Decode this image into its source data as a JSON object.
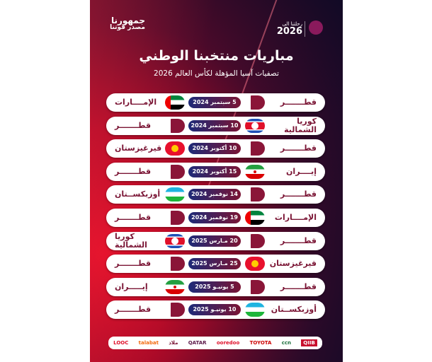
{
  "header": {
    "brand_line1": "جمهورنا",
    "brand_line2": "مصدر قوتنا",
    "journey_line1": "رحلتنا الى",
    "journey_line2": "2026",
    "logo": "QFA"
  },
  "title": "مباريات منتخبنا الوطني",
  "subtitle": "تصفيات آسيا المؤهلة لكأس العالم 2026",
  "matches": [
    {
      "home": "قطـــــــر",
      "home_flag": "qatar",
      "date": "5 سبتمبر 2024",
      "away": "الإمــــارات",
      "away_flag": "uae"
    },
    {
      "home": "كوريا الشمالية",
      "home_flag": "north-korea",
      "date": "10 سبتمبر 2024",
      "away": "قطـــــــر",
      "away_flag": "qatar"
    },
    {
      "home": "قطـــــــر",
      "home_flag": "qatar",
      "date": "10 أكتوبر 2024",
      "away": "قيرغيزستان",
      "away_flag": "kyrgyzstan"
    },
    {
      "home": "إيــــران",
      "home_flag": "iran",
      "date": "15 أكتوبر 2024",
      "away": "قطـــــــر",
      "away_flag": "qatar"
    },
    {
      "home": "قطـــــــر",
      "home_flag": "qatar",
      "date": "14 نوفمبر 2024",
      "away": "أوزبكســتان",
      "away_flag": "uzbekistan"
    },
    {
      "home": "الإمــــارات",
      "home_flag": "uae",
      "date": "19 نوفمبر 2024",
      "away": "قطـــــــر",
      "away_flag": "qatar"
    },
    {
      "home": "قطـــــــر",
      "home_flag": "qatar",
      "date": "20 مـارس 2025",
      "away": "كوريا الشمالية",
      "away_flag": "north-korea"
    },
    {
      "home": "قيرغيزستان",
      "home_flag": "kyrgyzstan",
      "date": "25 مـارس 2025",
      "away": "قطـــــــر",
      "away_flag": "qatar"
    },
    {
      "home": "قطـــــــر",
      "home_flag": "qatar",
      "date": "5 يونيـو 2025",
      "away": "إيـــــران",
      "away_flag": "iran"
    },
    {
      "home": "أوزبكســتان",
      "home_flag": "uzbekistan",
      "date": "10 يونيـو 2025",
      "away": "قطـــــــر",
      "away_flag": "qatar"
    }
  ],
  "sponsors": [
    "LOOC",
    "talabat",
    "ملاذ",
    "QATAR",
    "ooredoo",
    "TOYOTA",
    "ccn",
    "QIIB"
  ],
  "colors": {
    "maroon": "#7a1434",
    "navy": "#1d2a78"
  }
}
